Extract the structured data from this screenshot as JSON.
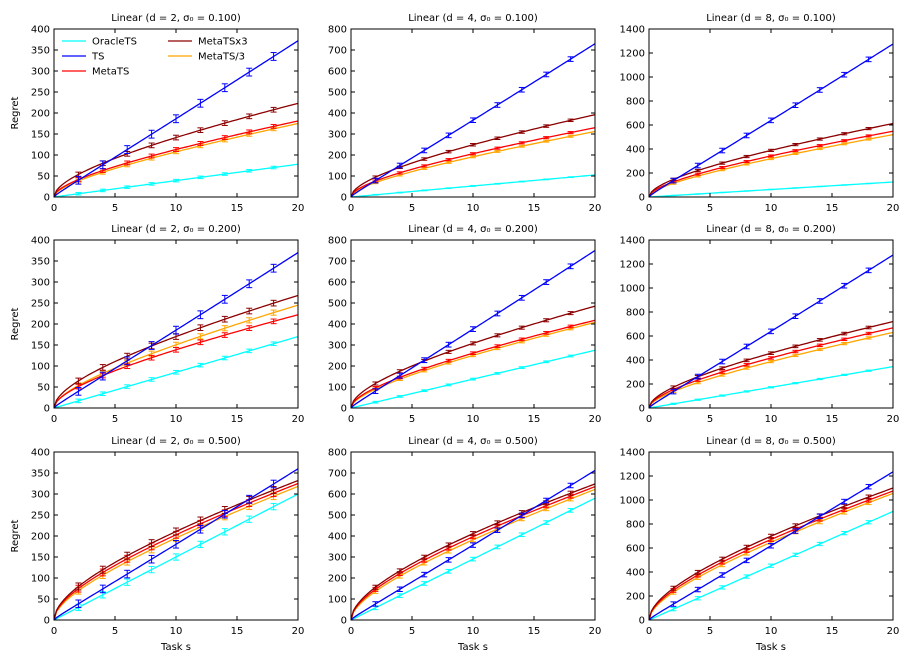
{
  "colors": {
    "OracleTS": "#00ffff",
    "TS": "#0000ff",
    "MetaTS": "#ff0000",
    "MetaTSx3": "#8b0000",
    "MetaTS/3": "#ffa500"
  },
  "legend": {
    "placement": "top-left",
    "entries": [
      "OracleTS",
      "TS",
      "MetaTS",
      "MetaTSx3",
      "MetaTS/3"
    ]
  },
  "chart_data": [
    {
      "type": "line",
      "title": "Linear (d = 2, σ₀ = 0.100)",
      "xlabel": "",
      "ylabel": "Regret",
      "xlim": [
        0,
        20
      ],
      "ylim": [
        0,
        400
      ],
      "xticks": [
        0,
        5,
        10,
        15,
        20
      ],
      "yticks": [
        0,
        50,
        100,
        150,
        200,
        250,
        300,
        350,
        400
      ],
      "series": [
        {
          "name": "OracleTS",
          "final": 78
        },
        {
          "name": "TS",
          "final": 372
        },
        {
          "name": "MetaTS",
          "final": 181
        },
        {
          "name": "MetaTSx3",
          "final": 223
        },
        {
          "name": "MetaTS/3",
          "final": 175
        }
      ]
    },
    {
      "type": "line",
      "title": "Linear (d = 4, σ₀ = 0.100)",
      "xlabel": "",
      "ylabel": "",
      "xlim": [
        0,
        20
      ],
      "ylim": [
        0,
        800
      ],
      "xticks": [
        0,
        5,
        10,
        15,
        20
      ],
      "yticks": [
        0,
        100,
        200,
        300,
        400,
        500,
        600,
        700,
        800
      ],
      "series": [
        {
          "name": "OracleTS",
          "final": 105
        },
        {
          "name": "TS",
          "final": 730
        },
        {
          "name": "MetaTS",
          "final": 330
        },
        {
          "name": "MetaTSx3",
          "final": 392
        },
        {
          "name": "MetaTS/3",
          "final": 312
        }
      ]
    },
    {
      "type": "line",
      "title": "Linear (d = 8, σ₀ = 0.100)",
      "xlabel": "",
      "ylabel": "",
      "xlim": [
        0,
        20
      ],
      "ylim": [
        0,
        1400
      ],
      "xticks": [
        0,
        5,
        10,
        15,
        20
      ],
      "yticks": [
        0,
        200,
        400,
        600,
        800,
        1000,
        1200,
        1400
      ],
      "series": [
        {
          "name": "OracleTS",
          "final": 125
        },
        {
          "name": "TS",
          "final": 1275
        },
        {
          "name": "MetaTS",
          "final": 548
        },
        {
          "name": "MetaTSx3",
          "final": 612
        },
        {
          "name": "MetaTS/3",
          "final": 520
        }
      ]
    },
    {
      "type": "line",
      "title": "Linear (d = 2, σ₀ = 0.200)",
      "xlabel": "",
      "ylabel": "Regret",
      "xlim": [
        0,
        20
      ],
      "ylim": [
        0,
        400
      ],
      "xticks": [
        0,
        5,
        10,
        15,
        20
      ],
      "yticks": [
        0,
        50,
        100,
        150,
        200,
        250,
        300,
        350,
        400
      ],
      "series": [
        {
          "name": "OracleTS",
          "final": 170
        },
        {
          "name": "TS",
          "final": 370
        },
        {
          "name": "MetaTS",
          "final": 222
        },
        {
          "name": "MetaTSx3",
          "final": 268
        },
        {
          "name": "MetaTS/3",
          "final": 245
        }
      ]
    },
    {
      "type": "line",
      "title": "Linear (d = 4, σ₀ = 0.200)",
      "xlabel": "",
      "ylabel": "",
      "xlim": [
        0,
        20
      ],
      "ylim": [
        0,
        800
      ],
      "xticks": [
        0,
        5,
        10,
        15,
        20
      ],
      "yticks": [
        0,
        100,
        200,
        300,
        400,
        500,
        600,
        700,
        800
      ],
      "series": [
        {
          "name": "OracleTS",
          "final": 275
        },
        {
          "name": "TS",
          "final": 750
        },
        {
          "name": "MetaTS",
          "final": 418
        },
        {
          "name": "MetaTSx3",
          "final": 485
        },
        {
          "name": "MetaTS/3",
          "final": 408
        }
      ]
    },
    {
      "type": "line",
      "title": "Linear (d = 8, σ₀ = 0.200)",
      "xlabel": "",
      "ylabel": "",
      "xlim": [
        0,
        20
      ],
      "ylim": [
        0,
        1400
      ],
      "xticks": [
        0,
        5,
        10,
        15,
        20
      ],
      "yticks": [
        0,
        200,
        400,
        600,
        800,
        1000,
        1200,
        1400
      ],
      "series": [
        {
          "name": "OracleTS",
          "final": 345
        },
        {
          "name": "TS",
          "final": 1275
        },
        {
          "name": "MetaTS",
          "final": 668
        },
        {
          "name": "MetaTSx3",
          "final": 720
        },
        {
          "name": "MetaTS/3",
          "final": 630
        }
      ]
    },
    {
      "type": "line",
      "title": "Linear (d = 2, σ₀ = 0.500)",
      "xlabel": "Task s",
      "ylabel": "Regret",
      "xlim": [
        0,
        20
      ],
      "ylim": [
        0,
        400
      ],
      "xticks": [
        0,
        5,
        10,
        15,
        20
      ],
      "yticks": [
        0,
        50,
        100,
        150,
        200,
        250,
        300,
        350,
        400
      ],
      "series": [
        {
          "name": "OracleTS",
          "final": 300
        },
        {
          "name": "TS",
          "final": 360
        },
        {
          "name": "MetaTS",
          "final": 325
        },
        {
          "name": "MetaTSx3",
          "final": 332
        },
        {
          "name": "MetaTS/3",
          "final": 318
        }
      ]
    },
    {
      "type": "line",
      "title": "Linear (d = 4, σ₀ = 0.500)",
      "xlabel": "Task s",
      "ylabel": "",
      "xlim": [
        0,
        20
      ],
      "ylim": [
        0,
        800
      ],
      "xticks": [
        0,
        5,
        10,
        15,
        20
      ],
      "yticks": [
        0,
        100,
        200,
        300,
        400,
        500,
        600,
        700,
        800
      ],
      "series": [
        {
          "name": "OracleTS",
          "final": 580
        },
        {
          "name": "TS",
          "final": 712
        },
        {
          "name": "MetaTS",
          "final": 635
        },
        {
          "name": "MetaTSx3",
          "final": 648
        },
        {
          "name": "MetaTS/3",
          "final": 622
        }
      ]
    },
    {
      "type": "line",
      "title": "Linear (d = 8, σ₀ = 0.500)",
      "xlabel": "Task s",
      "ylabel": "",
      "xlim": [
        0,
        20
      ],
      "ylim": [
        0,
        1400
      ],
      "xticks": [
        0,
        5,
        10,
        15,
        20
      ],
      "yticks": [
        0,
        200,
        400,
        600,
        800,
        1000,
        1200,
        1400
      ],
      "series": [
        {
          "name": "OracleTS",
          "final": 905
        },
        {
          "name": "TS",
          "final": 1235
        },
        {
          "name": "MetaTS",
          "final": 1075
        },
        {
          "name": "MetaTSx3",
          "final": 1100
        },
        {
          "name": "MetaTS/3",
          "final": 1055
        }
      ]
    }
  ]
}
